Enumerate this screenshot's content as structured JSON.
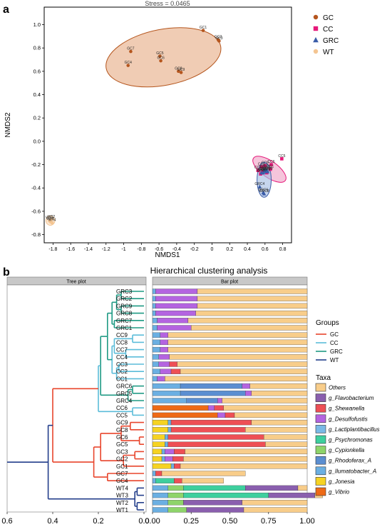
{
  "panel_a": {
    "letter": "a",
    "chart_data": {
      "type": "scatter",
      "title": "Stress = 0.0465",
      "xlabel": "NMDS1",
      "ylabel": "NMDS2",
      "xlim": [
        -1.9,
        0.9
      ],
      "ylim": [
        -0.87,
        1.15
      ],
      "xticks": [
        -1.8,
        -1.6,
        -1.4,
        -1.2,
        -1.0,
        -0.8,
        -0.6,
        -0.4,
        -0.2,
        0.0,
        0.2,
        0.4,
        0.6,
        0.8
      ],
      "xtick_labels": [
        "-1.8",
        "-1.6",
        "-1.4",
        "-1.2",
        "-1",
        "-0.8",
        "-0.6",
        "-0.4",
        "-0.2",
        "0",
        "0.2",
        "0.4",
        "0.6",
        "0.8"
      ],
      "yticks": [
        1.0,
        0.8,
        0.6,
        0.4,
        0.2,
        0.0,
        -0.2,
        -0.4,
        -0.6,
        -0.8
      ],
      "ytick_labels": [
        "1.0",
        "0.8",
        "0.6",
        "0.4",
        "0.2",
        "0.0",
        "-0.2",
        "-0.4",
        "-0.6",
        "-0.8"
      ],
      "legend_placement": "outside-right-top",
      "series": [
        {
          "name": "GC",
          "color": "#b5561e",
          "marker": "circle",
          "ellipse_color": "#e8b08c",
          "ellipse": {
            "cx": -0.55,
            "cy": 0.72,
            "rx": 0.66,
            "ry": 0.24,
            "angle_deg": 11
          },
          "points": [
            {
              "label": "GC1",
              "x": -0.1,
              "y": 0.95
            },
            {
              "label": "GC2",
              "x": 0.07,
              "y": 0.87
            },
            {
              "label": "GC3",
              "x": 0.08,
              "y": 0.86
            },
            {
              "label": "GC7",
              "x": -0.92,
              "y": 0.77
            },
            {
              "label": "GC5",
              "x": -0.59,
              "y": 0.73
            },
            {
              "label": "GC6",
              "x": -0.58,
              "y": 0.69
            },
            {
              "label": "GC4",
              "x": -0.95,
              "y": 0.65
            },
            {
              "label": "GC8",
              "x": -0.38,
              "y": 0.6
            },
            {
              "label": "GC9",
              "x": -0.35,
              "y": 0.59
            }
          ]
        },
        {
          "name": "CC",
          "color": "#e6197a",
          "marker": "square",
          "ellipse_color": "#f0a6c8",
          "ellipse": {
            "cx": 0.65,
            "cy": -0.24,
            "rx": 0.22,
            "ry": 0.07,
            "angle_deg": -35
          },
          "points": [
            {
              "label": "CC5",
              "x": 0.79,
              "y": -0.15
            },
            {
              "label": "CC6",
              "x": 0.67,
              "y": -0.2
            },
            {
              "label": "CC8",
              "x": 0.6,
              "y": -0.21
            },
            {
              "label": "CC9",
              "x": 0.56,
              "y": -0.22
            },
            {
              "label": "CC1",
              "x": 0.66,
              "y": -0.24
            },
            {
              "label": "CC7",
              "x": 0.52,
              "y": -0.25
            },
            {
              "label": "CC3",
              "x": 0.57,
              "y": -0.26
            },
            {
              "label": "CC2",
              "x": 0.62,
              "y": -0.27
            },
            {
              "label": "CC4",
              "x": 0.55,
              "y": -0.28
            }
          ]
        },
        {
          "name": "GRC",
          "color": "#3a5ca8",
          "marker": "triangle",
          "ellipse_color": "#a7bfe3",
          "ellipse": {
            "cx": 0.59,
            "cy": -0.33,
            "rx": 0.08,
            "ry": 0.15,
            "angle_deg": 0
          },
          "points": [
            {
              "label": "GRC1",
              "x": 0.6,
              "y": -0.24
            },
            {
              "label": "GRC2",
              "x": 0.62,
              "y": -0.25
            },
            {
              "label": "GRC3",
              "x": 0.6,
              "y": -0.26
            },
            {
              "label": "GRC7",
              "x": 0.58,
              "y": -0.27
            },
            {
              "label": "GRC9",
              "x": 0.63,
              "y": -0.26
            },
            {
              "label": "GRC5",
              "x": 0.56,
              "y": -0.27
            },
            {
              "label": "GRC4",
              "x": 0.54,
              "y": -0.39
            },
            {
              "label": "GRC6",
              "x": 0.58,
              "y": -0.44
            },
            {
              "label": "GRC8",
              "x": 0.59,
              "y": -0.45
            }
          ]
        },
        {
          "name": "WT",
          "color": "#f4c592",
          "marker": "circle",
          "ellipse_color": "#f7d9b8",
          "ellipse": {
            "cx": -1.83,
            "cy": -0.68,
            "rx": 0.05,
            "ry": 0.04,
            "angle_deg": 0
          },
          "points": [
            {
              "label": "WT2",
              "x": -1.82,
              "y": -0.67
            },
            {
              "label": "WT3",
              "x": -1.84,
              "y": -0.68
            },
            {
              "label": "WT1",
              "x": -1.83,
              "y": -0.69
            },
            {
              "label": "WT4",
              "x": -1.81,
              "y": -0.7
            }
          ]
        }
      ]
    }
  },
  "panel_b": {
    "letter": "b",
    "title": "Hierarchical clustering analysis",
    "tree_header": "Tree plot",
    "bar_header": "Bar plot",
    "chart_data": {
      "type": "bar",
      "orientation": "horizontal",
      "stacked": true,
      "xlim": [
        0,
        1
      ],
      "xticks": [
        0,
        0.25,
        0.5,
        0.75,
        1.0
      ],
      "xtick_labels": [
        "0.00",
        "0.25",
        "0.50",
        "0.75",
        "1.00"
      ],
      "tree_xlim": [
        0,
        0.6
      ],
      "tree_xticks": [
        0,
        0.2,
        0.4,
        0.6
      ],
      "tree_xtick_labels": [
        "0.0",
        "0.2",
        "0.4",
        "0.6"
      ],
      "samples": [
        "GRC3",
        "GRC2",
        "GRC9",
        "GRC8",
        "GRC7",
        "GRC1",
        "CC9",
        "CC8",
        "CC7",
        "CC4",
        "CC3",
        "CC2",
        "CC1",
        "GRC6",
        "GRC5",
        "GRC4",
        "CC6",
        "CC5",
        "GC9",
        "GC8",
        "GC6",
        "GC5",
        "GC3",
        "GC2",
        "GC1",
        "GC7",
        "GC4",
        "WT4",
        "WT3",
        "WT2",
        "WT1"
      ],
      "sample_groups": [
        "GRC",
        "GRC",
        "GRC",
        "GRC",
        "GRC",
        "GRC",
        "CC",
        "CC",
        "CC",
        "CC",
        "CC",
        "CC",
        "CC",
        "GRC",
        "GRC",
        "GRC",
        "CC",
        "CC",
        "GC",
        "GC",
        "GC",
        "GC",
        "GC",
        "GC",
        "GC",
        "GC",
        "GC",
        "WT",
        "WT",
        "WT",
        "WT"
      ],
      "groups_legend": {
        "title": "Groups",
        "items": [
          {
            "name": "GC",
            "color": "#e8452c"
          },
          {
            "name": "CC",
            "color": "#5bbcd9"
          },
          {
            "name": "GRC",
            "color": "#1f9a84"
          },
          {
            "name": "WT",
            "color": "#233e8b"
          }
        ]
      },
      "taxa_legend_title": "Taxa",
      "series": [
        {
          "name": "g_Vibrio",
          "color": "#ee6a16",
          "values": [
            0,
            0,
            0,
            0,
            0,
            0,
            0,
            0,
            0,
            0,
            0,
            0,
            0,
            0,
            0,
            0,
            0.36,
            0.42,
            0,
            0,
            0,
            0,
            0,
            0,
            0,
            0,
            0,
            0,
            0,
            0,
            0
          ]
        },
        {
          "name": "g_Jonesia",
          "color": "#f6d323",
          "values": [
            0,
            0,
            0,
            0,
            0,
            0,
            0,
            0,
            0,
            0,
            0,
            0,
            0,
            0,
            0,
            0,
            0,
            0,
            0.1,
            0.1,
            0.08,
            0.08,
            0.06,
            0.06,
            0.12,
            0,
            0,
            0,
            0,
            0,
            0
          ]
        },
        {
          "name": "g_Ilumatobacter_A",
          "color": "#6bafe2",
          "values": [
            0.02,
            0.02,
            0.02,
            0.02,
            0.03,
            0.03,
            0.05,
            0.05,
            0.05,
            0.04,
            0.04,
            0.05,
            0.03,
            0.18,
            0.18,
            0.22,
            0,
            0,
            0.02,
            0.02,
            0.02,
            0.02,
            0.02,
            0.02,
            0.02,
            0.02,
            0.02,
            0.1,
            0.1,
            0.1,
            0.1
          ]
        },
        {
          "name": "g_Rhodoferax_A",
          "color": "#5b8ed1",
          "values": [
            0,
            0,
            0,
            0,
            0,
            0,
            0,
            0,
            0,
            0,
            0,
            0,
            0,
            0.4,
            0.42,
            0.2,
            0,
            0,
            0,
            0,
            0,
            0,
            0,
            0,
            0,
            0,
            0,
            0,
            0,
            0,
            0
          ]
        },
        {
          "name": "g_Cypionkella",
          "color": "#8ed46a",
          "values": [
            0,
            0,
            0,
            0,
            0,
            0,
            0,
            0,
            0,
            0,
            0,
            0,
            0,
            0,
            0,
            0,
            0,
            0,
            0,
            0,
            0,
            0,
            0,
            0,
            0,
            0,
            0,
            0.1,
            0.1,
            0.1,
            0.12
          ]
        },
        {
          "name": "g_Psychromonas",
          "color": "#3ecf9e",
          "values": [
            0,
            0,
            0,
            0,
            0,
            0,
            0,
            0,
            0,
            0,
            0,
            0,
            0,
            0,
            0,
            0,
            0,
            0,
            0,
            0,
            0,
            0,
            0,
            0,
            0,
            0,
            0.12,
            0.4,
            0.55,
            0,
            0
          ]
        },
        {
          "name": "g_Lactiplantibacillus",
          "color": "#79b9e6",
          "values": [
            0,
            0,
            0,
            0,
            0,
            0,
            0,
            0,
            0,
            0,
            0,
            0,
            0,
            0,
            0,
            0,
            0,
            0,
            0,
            0,
            0,
            0,
            0,
            0,
            0,
            0,
            0,
            0,
            0,
            0,
            0
          ]
        },
        {
          "name": "g_Desulfofustis",
          "color": "#b464e0",
          "values": [
            0.27,
            0.27,
            0.27,
            0.26,
            0.2,
            0.22,
            0.05,
            0.05,
            0.05,
            0.07,
            0.07,
            0.07,
            0.05,
            0.05,
            0.04,
            0.03,
            0.04,
            0.05,
            0,
            0,
            0,
            0,
            0.06,
            0.05,
            0,
            0,
            0,
            0,
            0,
            0,
            0
          ]
        },
        {
          "name": "g_Shewanella",
          "color": "#ee4f55",
          "values": [
            0,
            0,
            0,
            0,
            0,
            0,
            0,
            0,
            0,
            0,
            0.05,
            0.06,
            0,
            0,
            0,
            0,
            0.06,
            0.06,
            0.52,
            0.48,
            0.62,
            0.63,
            0.07,
            0.07,
            0.04,
            0.04,
            0.05,
            0,
            0,
            0,
            0
          ]
        },
        {
          "name": "g_Flavobacterium",
          "color": "#8a5fae",
          "values": [
            0,
            0,
            0,
            0,
            0,
            0,
            0,
            0,
            0,
            0,
            0,
            0,
            0,
            0,
            0,
            0,
            0,
            0,
            0,
            0,
            0,
            0,
            0,
            0,
            0,
            0,
            0,
            0.34,
            0.3,
            0.38,
            0.37
          ]
        },
        {
          "name": "Others",
          "color": "#f8cd8a",
          "values": [
            0.71,
            0.71,
            0.71,
            0.72,
            0.77,
            0.75,
            0.9,
            0.9,
            0.9,
            0.89,
            0.84,
            0.82,
            0.92,
            0.37,
            0.36,
            0.55,
            0.54,
            0.47,
            0.36,
            0.4,
            0.28,
            0.27,
            0.79,
            0.8,
            0.82,
            0.54,
            0.27,
            0.06,
            0.05,
            0.42,
            0.41
          ]
        }
      ],
      "taxa_legend_order": [
        "Others",
        "g_Flavobacterium",
        "g_Shewanella",
        "g_Desulfofustis",
        "g_Lactiplantibacillus",
        "g_Psychromonas",
        "g_Cypionkella",
        "g_Rhodoferax_A",
        "g_Ilumatobacter_A",
        "g_Jonesia",
        "g_Vibrio"
      ]
    }
  }
}
